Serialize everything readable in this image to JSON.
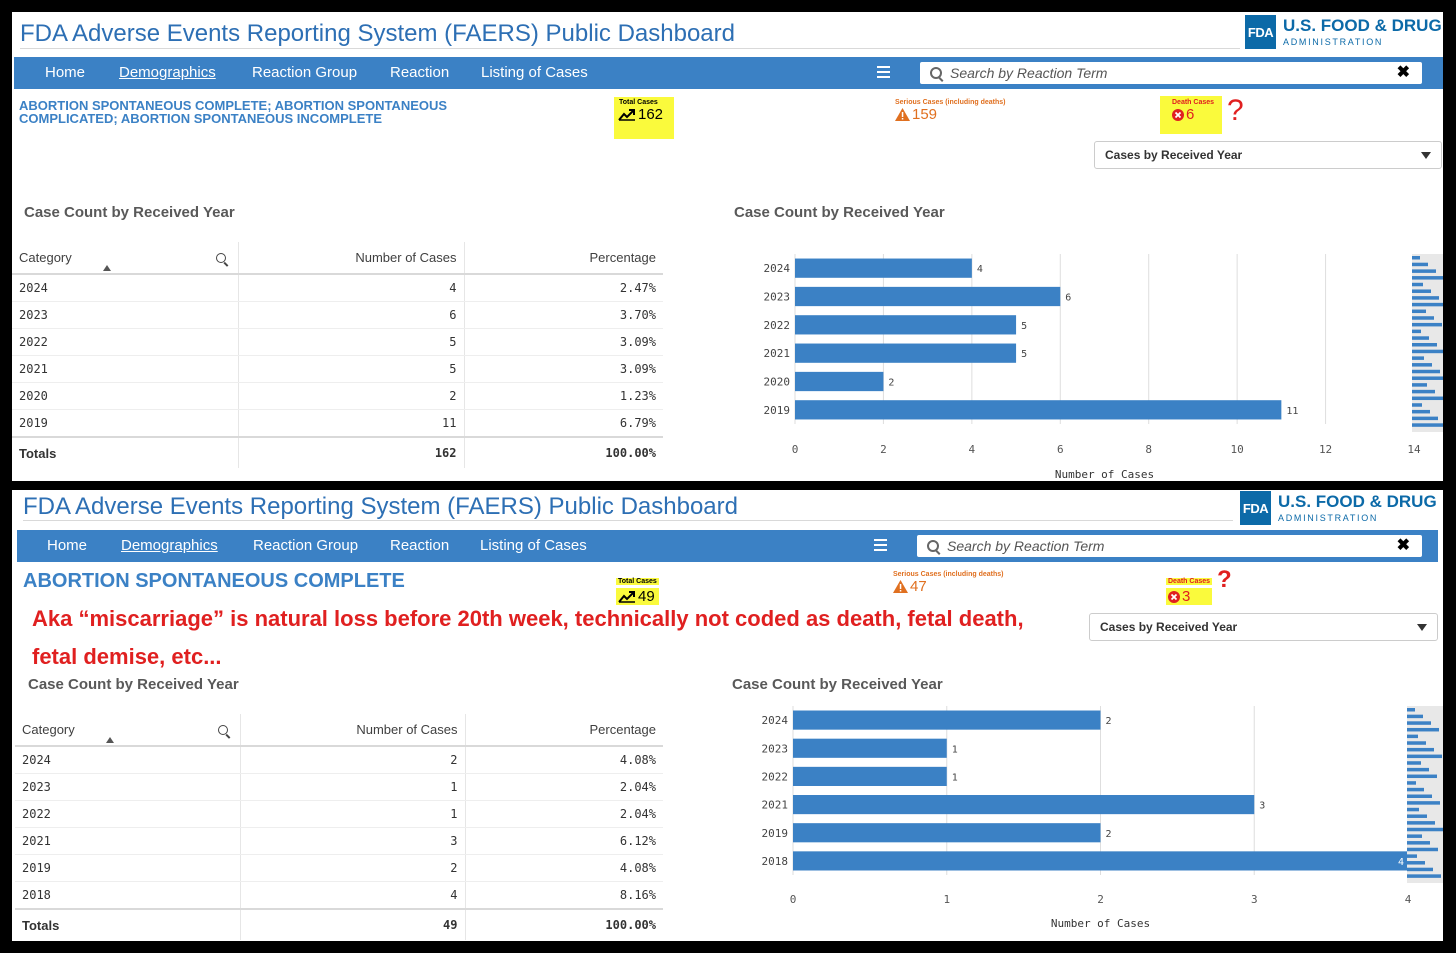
{
  "panels": [
    {
      "app_title": "FDA Adverse Events Reporting System (FAERS) Public Dashboard",
      "logo": {
        "box": "FDA",
        "line1": "U.S. FOOD & DRUG",
        "line2": "ADMINISTRATION"
      },
      "nav": [
        "Home",
        "Demographics",
        "Reaction Group",
        "Reaction",
        "Listing of Cases"
      ],
      "nav_active": 1,
      "search_placeholder": "Search by Reaction Term",
      "clear_icon": "✖",
      "reaction_title": "ABORTION SPONTANEOUS COMPLETE; ABORTION SPONTANEOUS COMPLICATED; ABORTION SPONTANEOUS INCOMPLETE",
      "kpis": {
        "total": {
          "label": "Total Cases",
          "value": "162"
        },
        "serious": {
          "label": "Serious Cases (including deaths)",
          "value": "159"
        },
        "death": {
          "label": "Death Cases",
          "value": "6"
        }
      },
      "question_mark": "?",
      "dropdown": "Cases by Received Year",
      "table_title": "Case Count by Received Year",
      "chart_title": "Case Count by Received Year",
      "table": {
        "headers": [
          "Category",
          "Number of Cases",
          "Percentage"
        ],
        "rows": [
          [
            "2024",
            "4",
            "2.47%"
          ],
          [
            "2023",
            "6",
            "3.70%"
          ],
          [
            "2022",
            "5",
            "3.09%"
          ],
          [
            "2021",
            "5",
            "3.09%"
          ],
          [
            "2020",
            "2",
            "1.23%"
          ],
          [
            "2019",
            "11",
            "6.79%"
          ]
        ],
        "totals": [
          "Totals",
          "162",
          "100.00%"
        ]
      }
    },
    {
      "app_title": "FDA Adverse Events Reporting System (FAERS) Public Dashboard",
      "logo": {
        "box": "FDA",
        "line1": "U.S. FOOD & DRUG",
        "line2": "ADMINISTRATION"
      },
      "nav": [
        "Home",
        "Demographics",
        "Reaction Group",
        "Reaction",
        "Listing of Cases"
      ],
      "nav_active": 1,
      "search_placeholder": "Search by Reaction Term",
      "clear_icon": "✖",
      "reaction_title": "ABORTION SPONTANEOUS COMPLETE",
      "kpis": {
        "total": {
          "label": "Total Cases",
          "value": "49"
        },
        "serious": {
          "label": "Serious Cases (including deaths)",
          "value": "47"
        },
        "death": {
          "label": "Death Cases",
          "value": "3"
        }
      },
      "question_mark": "?",
      "dropdown": "Cases by Received Year",
      "annotation": "Aka “miscarriage” is natural loss before 20th week, technically not coded as death, fetal death, fetal demise, etc...",
      "table_title": "Case Count by Received Year",
      "chart_title": "Case Count by Received Year",
      "table": {
        "headers": [
          "Category",
          "Number of Cases",
          "Percentage"
        ],
        "rows": [
          [
            "2024",
            "2",
            "4.08%"
          ],
          [
            "2023",
            "1",
            "2.04%"
          ],
          [
            "2022",
            "1",
            "2.04%"
          ],
          [
            "2021",
            "3",
            "6.12%"
          ],
          [
            "2019",
            "2",
            "4.08%"
          ],
          [
            "2018",
            "4",
            "8.16%"
          ]
        ],
        "totals": [
          "Totals",
          "49",
          "100.00%"
        ]
      }
    }
  ],
  "chart_data": [
    {
      "type": "bar",
      "orientation": "horizontal",
      "title": "Case Count by Received Year",
      "categories": [
        "2024",
        "2023",
        "2022",
        "2021",
        "2020",
        "2019"
      ],
      "values": [
        4,
        6,
        5,
        5,
        2,
        11
      ],
      "xlabel": "Number of Cases",
      "xlim": [
        0,
        14
      ],
      "xticks": [
        "0",
        "2",
        "4",
        "6",
        "8",
        "10",
        "12",
        "14"
      ],
      "grid": true,
      "bar_color": "#3b81c5"
    },
    {
      "type": "bar",
      "orientation": "horizontal",
      "title": "Case Count by Received Year",
      "categories": [
        "2024",
        "2023",
        "2022",
        "2021",
        "2019",
        "2018"
      ],
      "values": [
        2,
        1,
        1,
        3,
        2,
        4
      ],
      "xlabel": "Number of Cases",
      "xlim": [
        0,
        4
      ],
      "xticks": [
        "0",
        "1",
        "2",
        "3",
        "4"
      ],
      "grid": true,
      "bar_color": "#3b81c5"
    }
  ]
}
